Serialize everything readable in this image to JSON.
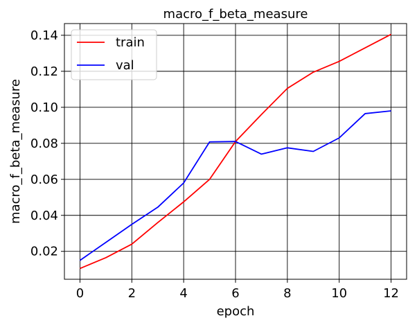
{
  "chart_data": {
    "type": "line",
    "title": "macro_f_beta_measure",
    "xlabel": "epoch",
    "ylabel": "macro_f_beta_measure",
    "x": [
      0,
      1,
      2,
      3,
      4,
      5,
      6,
      7,
      8,
      9,
      10,
      11,
      12
    ],
    "xlim": [
      -0.6,
      12.6
    ],
    "ylim": [
      0.0045,
      0.1465
    ],
    "xticks": [
      0,
      2,
      4,
      6,
      8,
      10,
      12
    ],
    "yticks": [
      0.02,
      0.04,
      0.06,
      0.08,
      0.1,
      0.12,
      0.14
    ],
    "xtick_labels": [
      "0",
      "2",
      "4",
      "6",
      "8",
      "10",
      "12"
    ],
    "ytick_labels": [
      "0.02",
      "0.04",
      "0.06",
      "0.08",
      "0.10",
      "0.12",
      "0.14"
    ],
    "grid": true,
    "legend": {
      "placement": "top-left"
    },
    "series": [
      {
        "name": "train",
        "color": "#ff0000",
        "values": [
          0.0105,
          0.0165,
          0.024,
          0.036,
          0.0475,
          0.06,
          0.081,
          0.096,
          0.1105,
          0.1195,
          0.1255,
          0.133,
          0.1405
        ]
      },
      {
        "name": "val",
        "color": "#0000ff",
        "values": [
          0.015,
          0.025,
          0.035,
          0.0445,
          0.058,
          0.0808,
          0.081,
          0.074,
          0.0775,
          0.0755,
          0.083,
          0.0965,
          0.098
        ]
      }
    ]
  }
}
